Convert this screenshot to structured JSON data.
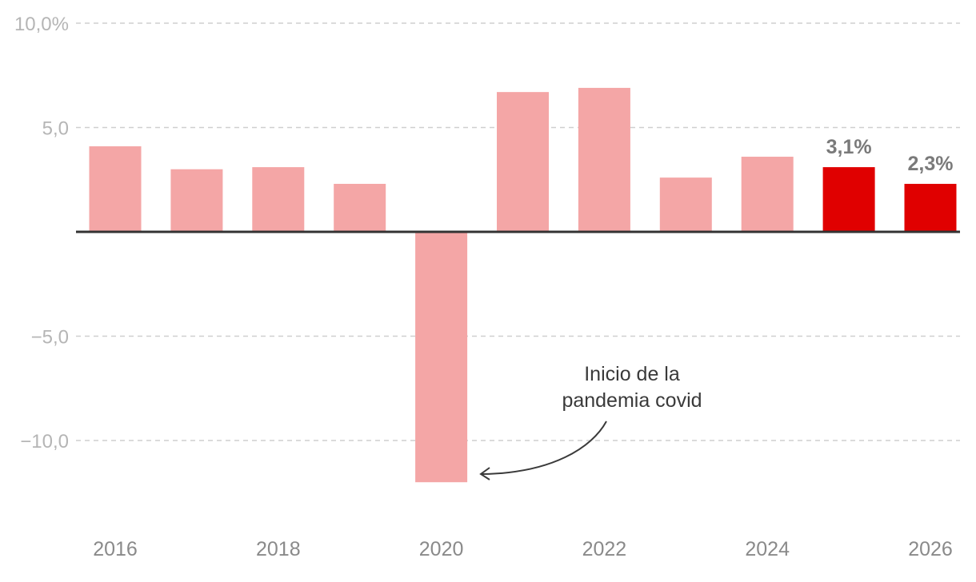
{
  "chart_data": {
    "type": "bar",
    "categories": [
      "2016",
      "2017",
      "2018",
      "2019",
      "2020",
      "2021",
      "2022",
      "2023",
      "2024",
      "2025",
      "2026"
    ],
    "values": [
      4.1,
      3.0,
      3.1,
      2.3,
      -12.0,
      6.7,
      6.9,
      2.6,
      3.6,
      3.1,
      2.3
    ],
    "highlight": [
      false,
      false,
      false,
      false,
      false,
      false,
      false,
      false,
      false,
      true,
      true
    ],
    "ylim": [
      -14,
      10
    ],
    "yticks": [
      {
        "value": 10,
        "label": "10,0%"
      },
      {
        "value": 5,
        "label": "5,0"
      },
      {
        "value": -5,
        "label": "−5,0"
      },
      {
        "value": -10,
        "label": "−10,0"
      }
    ],
    "xtick_labels": [
      "2016",
      "",
      "2018",
      "",
      "2020",
      "",
      "2022",
      "",
      "2024",
      "",
      "2026"
    ],
    "data_labels": [
      "",
      "",
      "",
      "",
      "",
      "",
      "",
      "",
      "",
      "3,1%",
      "2,3%"
    ],
    "annotation": {
      "lines": [
        "Inicio de la",
        "pandemia covid"
      ],
      "target_category": "2020"
    },
    "grid": true,
    "colors": {
      "bar": "#f4a6a6",
      "highlight": "#e00000",
      "grid": "#cfcfcf",
      "baseline": "#333333"
    },
    "title": "",
    "xlabel": "",
    "ylabel": ""
  }
}
